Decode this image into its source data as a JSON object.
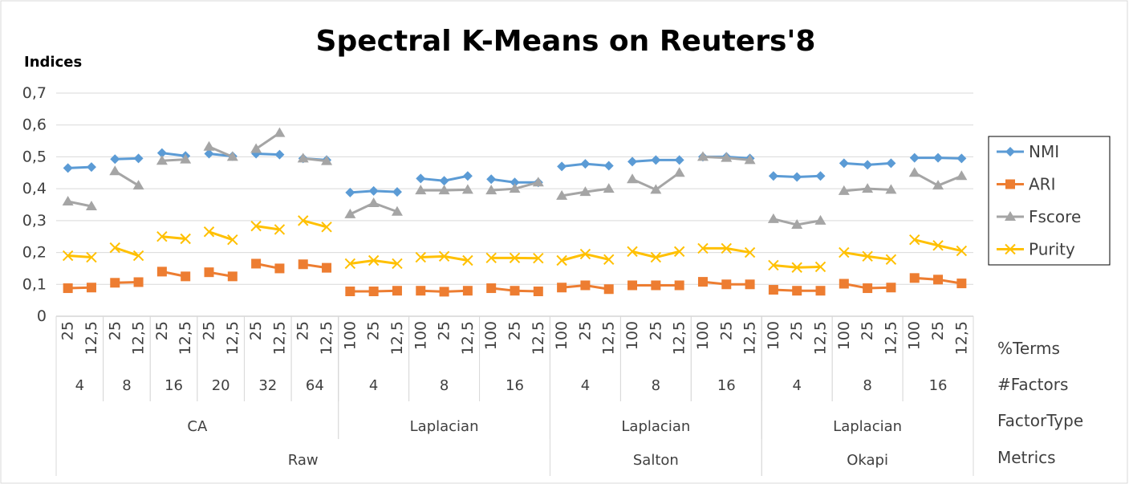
{
  "chart_data": {
    "type": "line",
    "title": "Spectral K-Means on Reuters'8",
    "y_label": "Indices",
    "level_names": [
      "%Terms",
      "#Factors",
      "FactorType",
      "Metrics"
    ],
    "metrics": [
      {
        "name": "Raw",
        "factor_types": [
          {
            "name": "CA",
            "factors": [
              {
                "label": "4",
                "terms": [
                  "25",
                  "12,5"
                ]
              },
              {
                "label": "8",
                "terms": [
                  "25",
                  "12,5"
                ]
              },
              {
                "label": "16",
                "terms": [
                  "25",
                  "12,5"
                ]
              },
              {
                "label": "20",
                "terms": [
                  "25",
                  "12,5"
                ]
              },
              {
                "label": "32",
                "terms": [
                  "25",
                  "12,5"
                ]
              },
              {
                "label": "64",
                "terms": [
                  "25",
                  "12,5"
                ]
              }
            ]
          },
          {
            "name": "Laplacian",
            "factors": [
              {
                "label": "4",
                "terms": [
                  "100",
                  "25",
                  "12,5"
                ]
              },
              {
                "label": "8",
                "terms": [
                  "100",
                  "25",
                  "12,5"
                ]
              },
              {
                "label": "16",
                "terms": [
                  "100",
                  "25",
                  "12,5"
                ]
              }
            ]
          }
        ]
      },
      {
        "name": "Salton",
        "factor_types": [
          {
            "name": "Laplacian",
            "factors": [
              {
                "label": "4",
                "terms": [
                  "100",
                  "25",
                  "12,5"
                ]
              },
              {
                "label": "8",
                "terms": [
                  "100",
                  "25",
                  "12,5"
                ]
              },
              {
                "label": "16",
                "terms": [
                  "100",
                  "25",
                  "12,5"
                ]
              }
            ]
          }
        ]
      },
      {
        "name": "Okapi",
        "factor_types": [
          {
            "name": "Laplacian",
            "factors": [
              {
                "label": "4",
                "terms": [
                  "100",
                  "25",
                  "12,5"
                ]
              },
              {
                "label": "8",
                "terms": [
                  "100",
                  "25",
                  "12,5"
                ]
              },
              {
                "label": "16",
                "terms": [
                  "100",
                  "25",
                  "12,5"
                ]
              }
            ]
          }
        ]
      }
    ],
    "series": [
      {
        "name": "NMI",
        "color": "#5b9bd5",
        "marker": "diamond",
        "values": [
          0.465,
          0.468,
          0.493,
          0.495,
          0.512,
          0.503,
          0.51,
          0.502,
          0.51,
          0.507,
          0.495,
          0.49,
          0.388,
          0.393,
          0.39,
          0.432,
          0.425,
          0.44,
          0.43,
          0.42,
          0.42,
          0.47,
          0.478,
          0.472,
          0.485,
          0.49,
          0.49,
          0.5,
          0.5,
          0.495,
          0.44,
          0.437,
          0.44,
          0.48,
          0.475,
          0.48,
          0.497,
          0.497,
          0.495
        ]
      },
      {
        "name": "ARI",
        "color": "#ed7d31",
        "marker": "square",
        "values": [
          0.088,
          0.09,
          0.105,
          0.107,
          0.14,
          0.125,
          0.138,
          0.125,
          0.165,
          0.15,
          0.163,
          0.152,
          0.078,
          0.078,
          0.08,
          0.08,
          0.077,
          0.08,
          0.088,
          0.08,
          0.078,
          0.09,
          0.097,
          0.085,
          0.097,
          0.097,
          0.097,
          0.108,
          0.1,
          0.1,
          0.083,
          0.08,
          0.08,
          0.102,
          0.088,
          0.09,
          0.12,
          0.115,
          0.103
        ]
      },
      {
        "name": "Fscore",
        "color": "#a5a5a5",
        "marker": "triangle",
        "values": [
          0.36,
          0.345,
          0.455,
          0.41,
          0.488,
          0.492,
          0.532,
          0.5,
          0.525,
          0.575,
          0.495,
          0.487,
          0.32,
          0.355,
          0.328,
          0.395,
          0.395,
          0.397,
          0.395,
          0.4,
          0.42,
          0.378,
          0.39,
          0.4,
          0.43,
          0.397,
          0.45,
          0.5,
          0.497,
          0.49,
          0.305,
          0.287,
          0.3,
          0.393,
          0.4,
          0.397,
          0.45,
          0.41,
          0.44
        ]
      },
      {
        "name": "Purity",
        "color": "#ffc000",
        "marker": "x",
        "values": [
          0.19,
          0.185,
          0.215,
          0.19,
          0.25,
          0.243,
          0.265,
          0.24,
          0.283,
          0.272,
          0.3,
          0.28,
          0.165,
          0.175,
          0.165,
          0.185,
          0.188,
          0.175,
          0.183,
          0.183,
          0.182,
          0.175,
          0.195,
          0.178,
          0.203,
          0.185,
          0.203,
          0.213,
          0.213,
          0.2,
          0.16,
          0.153,
          0.155,
          0.2,
          0.188,
          0.178,
          0.24,
          0.222,
          0.205
        ]
      }
    ],
    "ylim": [
      0,
      0.7
    ],
    "yticks": [
      0,
      {
        "value": 0.1,
        "label": "0,1"
      },
      {
        "value": 0.2,
        "label": "0,2"
      },
      {
        "value": 0.3,
        "label": "0,3"
      },
      {
        "value": 0.4,
        "label": "0,4"
      },
      {
        "value": 0.5,
        "label": "0,5"
      },
      {
        "value": 0.6,
        "label": "0,6"
      },
      {
        "value": 0.7,
        "label": "0,7"
      }
    ],
    "grid": true,
    "legend": "right"
  }
}
